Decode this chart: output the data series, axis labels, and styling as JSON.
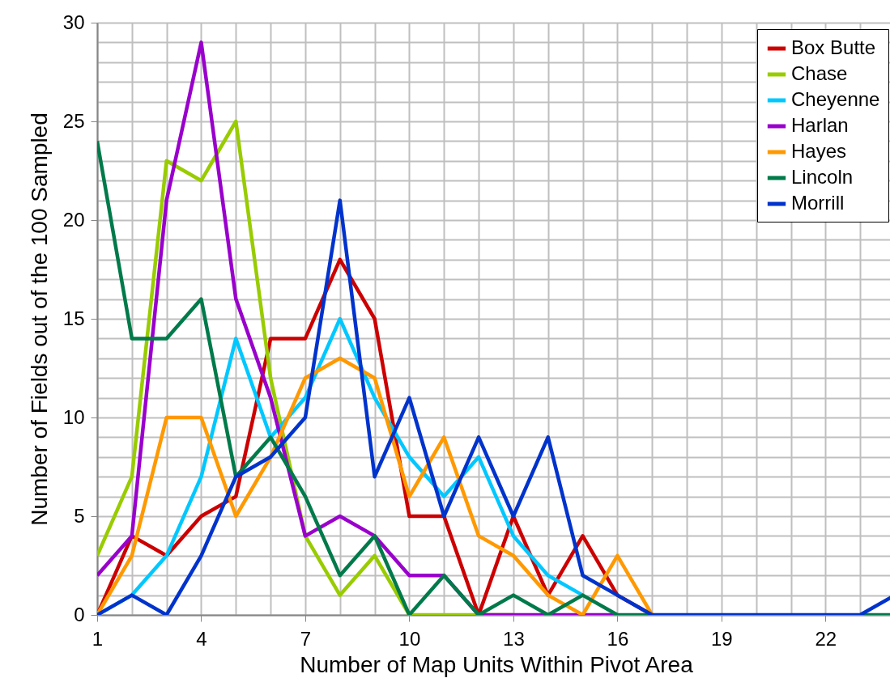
{
  "chart_data": {
    "type": "line",
    "xlabel": "Number of Map Units Within Pivot Area",
    "ylabel": "Number of Fields out of the 100 Sampled",
    "x": [
      1,
      2,
      3,
      4,
      5,
      6,
      7,
      8,
      9,
      10,
      11,
      12,
      13,
      14,
      15,
      16,
      17,
      18,
      19,
      20,
      21,
      22,
      23,
      24
    ],
    "xlim": [
      1,
      24
    ],
    "xticks": [
      1,
      4,
      7,
      10,
      13,
      16,
      19,
      22
    ],
    "ylim": [
      0,
      30
    ],
    "yticks": [
      0,
      5,
      10,
      15,
      20,
      25,
      30
    ],
    "grid": true,
    "legend": "top right",
    "marker": "none",
    "line_style": "solid",
    "series": [
      {
        "name": "Box Butte",
        "color": "#cc0000",
        "values": [
          0,
          4,
          3,
          5,
          6,
          14,
          14,
          18,
          15,
          5,
          5,
          0,
          5,
          1,
          4,
          1,
          0,
          null,
          null,
          null,
          null,
          null,
          null,
          null
        ]
      },
      {
        "name": "Chase",
        "color": "#99cc00",
        "values": [
          3,
          7,
          23,
          22,
          25,
          12,
          4,
          1,
          3,
          0,
          0,
          0,
          0,
          null,
          null,
          null,
          null,
          null,
          null,
          null,
          null,
          null,
          null,
          null
        ]
      },
      {
        "name": "Cheyenne",
        "color": "#00c8ff",
        "values": [
          0,
          1,
          3,
          7,
          14,
          9,
          11,
          15,
          11,
          8,
          6,
          8,
          4,
          2,
          1,
          null,
          null,
          null,
          null,
          null,
          null,
          null,
          null,
          null
        ]
      },
      {
        "name": "Harlan",
        "color": "#9900cc",
        "values": [
          2,
          4,
          21,
          29,
          16,
          11,
          4,
          5,
          4,
          2,
          2,
          0,
          0,
          0,
          0,
          0,
          null,
          null,
          null,
          null,
          null,
          null,
          null,
          null
        ]
      },
      {
        "name": "Hayes",
        "color": "#ff9900",
        "values": [
          0,
          3,
          10,
          10,
          5,
          8,
          12,
          13,
          12,
          6,
          9,
          4,
          3,
          1,
          0,
          3,
          0,
          null,
          null,
          null,
          null,
          null,
          null,
          null
        ]
      },
      {
        "name": "Lincoln",
        "color": "#007a4a",
        "values": [
          24,
          14,
          14,
          16,
          7,
          9,
          6,
          2,
          4,
          0,
          2,
          0,
          1,
          0,
          1,
          0,
          0,
          null,
          null,
          null,
          null,
          null,
          0,
          0
        ]
      },
      {
        "name": "Morrill",
        "color": "#0033cc",
        "values": [
          0,
          1,
          0,
          3,
          7,
          8,
          10,
          21,
          7,
          11,
          5,
          9,
          5,
          9,
          2,
          1,
          0,
          0,
          0,
          0,
          0,
          0,
          0,
          1
        ]
      }
    ]
  }
}
